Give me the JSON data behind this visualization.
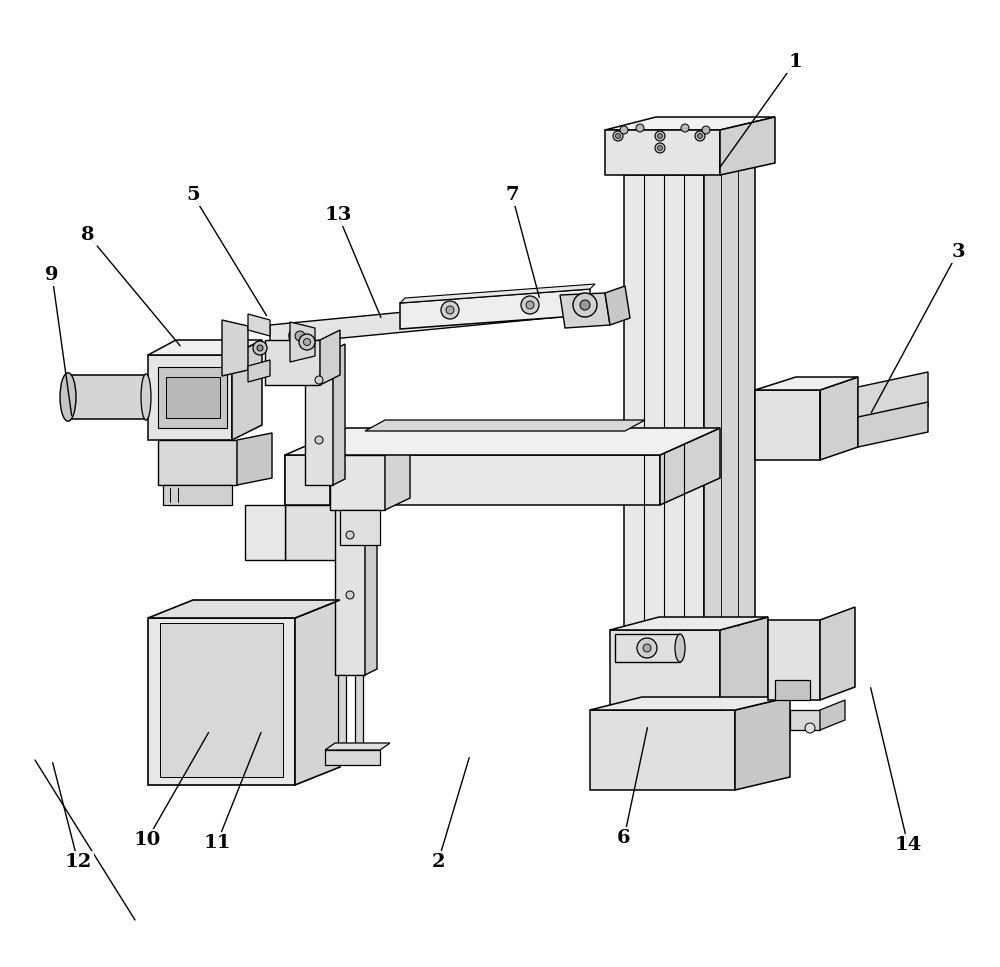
{
  "bg_color": "#ffffff",
  "lc": "#000000",
  "labels_pos": {
    "1": [
      795,
      62,
      718,
      170
    ],
    "2": [
      438,
      862,
      470,
      755
    ],
    "3": [
      958,
      252,
      870,
      415
    ],
    "5": [
      193,
      195,
      268,
      318
    ],
    "6": [
      624,
      838,
      648,
      725
    ],
    "7": [
      512,
      195,
      540,
      300
    ],
    "8": [
      88,
      235,
      182,
      348
    ],
    "9": [
      52,
      275,
      72,
      418
    ],
    "10": [
      147,
      840,
      210,
      730
    ],
    "11": [
      217,
      843,
      262,
      730
    ],
    "12": [
      78,
      862,
      52,
      760
    ],
    "13": [
      338,
      215,
      382,
      320
    ],
    "14": [
      908,
      845,
      870,
      685
    ]
  }
}
